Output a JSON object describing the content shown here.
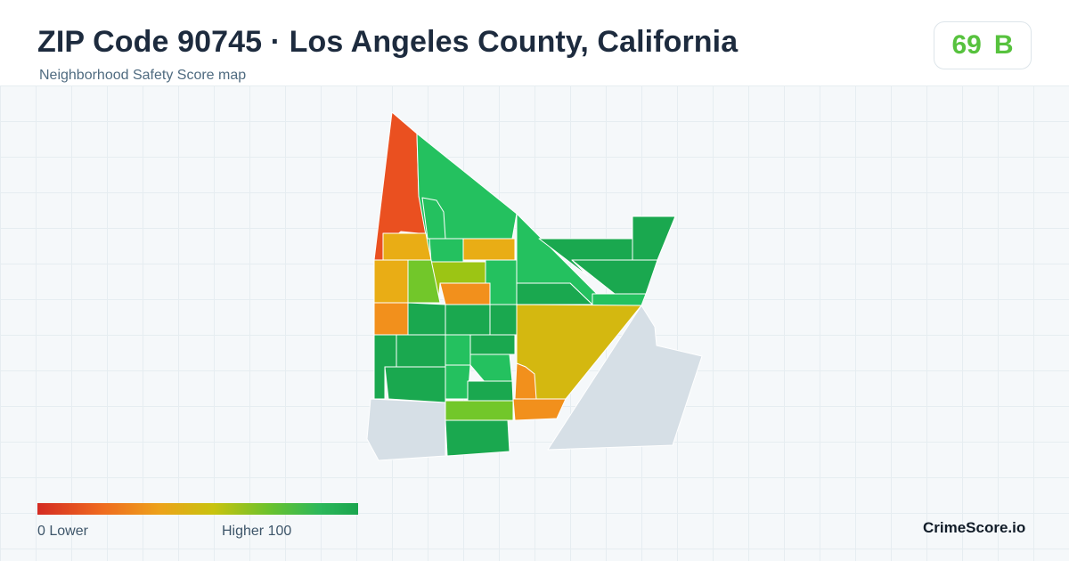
{
  "header": {
    "title": "ZIP Code 90745 · Los Angeles County, California",
    "subtitle": "Neighborhood Safety Score map"
  },
  "score": {
    "value": "69",
    "grade": "B",
    "color": "#57c23e"
  },
  "legend": {
    "min_label": "0  Lower",
    "max_label": "Higher  100",
    "colors": [
      "#d42b22",
      "#ef6a1f",
      "#eda21a",
      "#c8c30e",
      "#6cc22c",
      "#2cb85a",
      "#1aa54e"
    ]
  },
  "map": {
    "palette": {
      "red_orange": "#ea5020",
      "orange": "#f2901c",
      "amber": "#e9ad15",
      "yellow": "#d4b810",
      "yellow_green": "#9cc514",
      "light_green": "#72c72a",
      "green": "#24c15f",
      "dark_green": "#1aa84f",
      "no_data": "#d6dfe6"
    }
  },
  "brand": "CrimeScore.io"
}
